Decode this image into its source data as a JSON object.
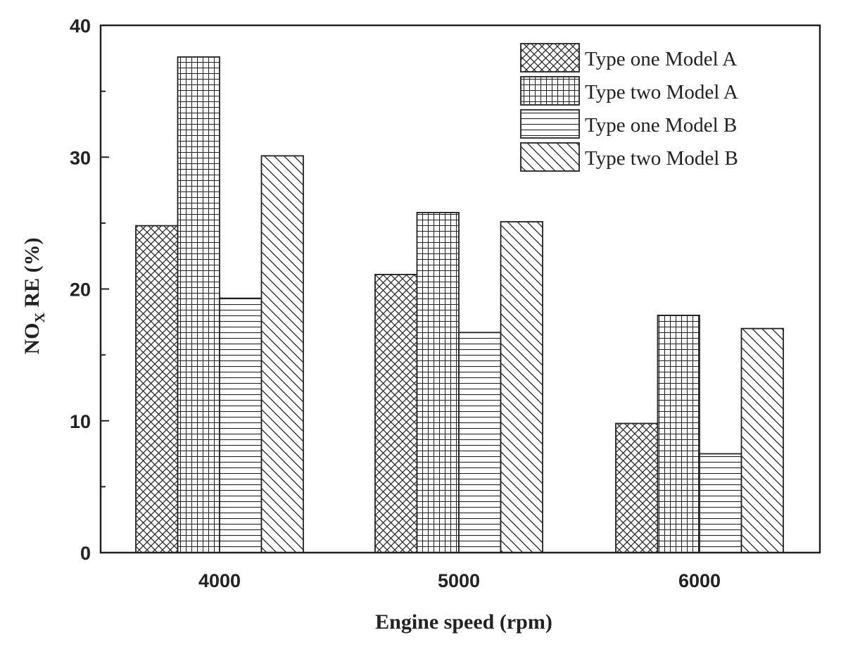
{
  "chart_data": {
    "type": "bar",
    "categories": [
      "4000",
      "5000",
      "6000"
    ],
    "series": [
      {
        "name": "Type one Model A",
        "values": [
          24.8,
          21.1,
          9.8
        ],
        "pattern": "crosshatch"
      },
      {
        "name": "Type two Model A",
        "values": [
          37.6,
          25.8,
          18.0
        ],
        "pattern": "grid"
      },
      {
        "name": "Type one Model B",
        "values": [
          19.3,
          16.7,
          7.5
        ],
        "pattern": "horizontal"
      },
      {
        "name": "Type two Model B",
        "values": [
          30.1,
          25.1,
          17.0
        ],
        "pattern": "diagonal"
      }
    ],
    "xlabel": "Engine speed (rpm)",
    "ylabel": {
      "prefix": "NO",
      "subscript": "X",
      "suffix": " RE (%)"
    },
    "ylim": [
      0,
      40
    ],
    "yticks": [
      "0",
      "10",
      "20",
      "30",
      "40"
    ],
    "grid": false,
    "legend_position": "top-right"
  }
}
